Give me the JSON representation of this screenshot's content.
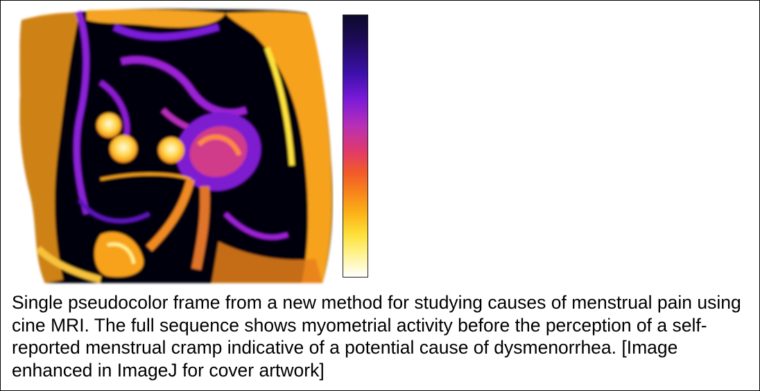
{
  "figure": {
    "caption": "Single pseudocolor frame from a new method for studying causes of menstrual pain using cine MRI. The full sequence shows myometrial activity before the perception of a self-reported menstrual cramp indicative of a potential cause of dysmenorrhea. [Image enhanced in ImageJ for cover artwork]",
    "image_kind": "pseudocolor-cine-mri-frame",
    "colormap": [
      "#0c0a2b",
      "#3a10a8",
      "#b62fb8",
      "#f2592a",
      "#fbb417",
      "#fff28c",
      "#ffffff"
    ]
  }
}
